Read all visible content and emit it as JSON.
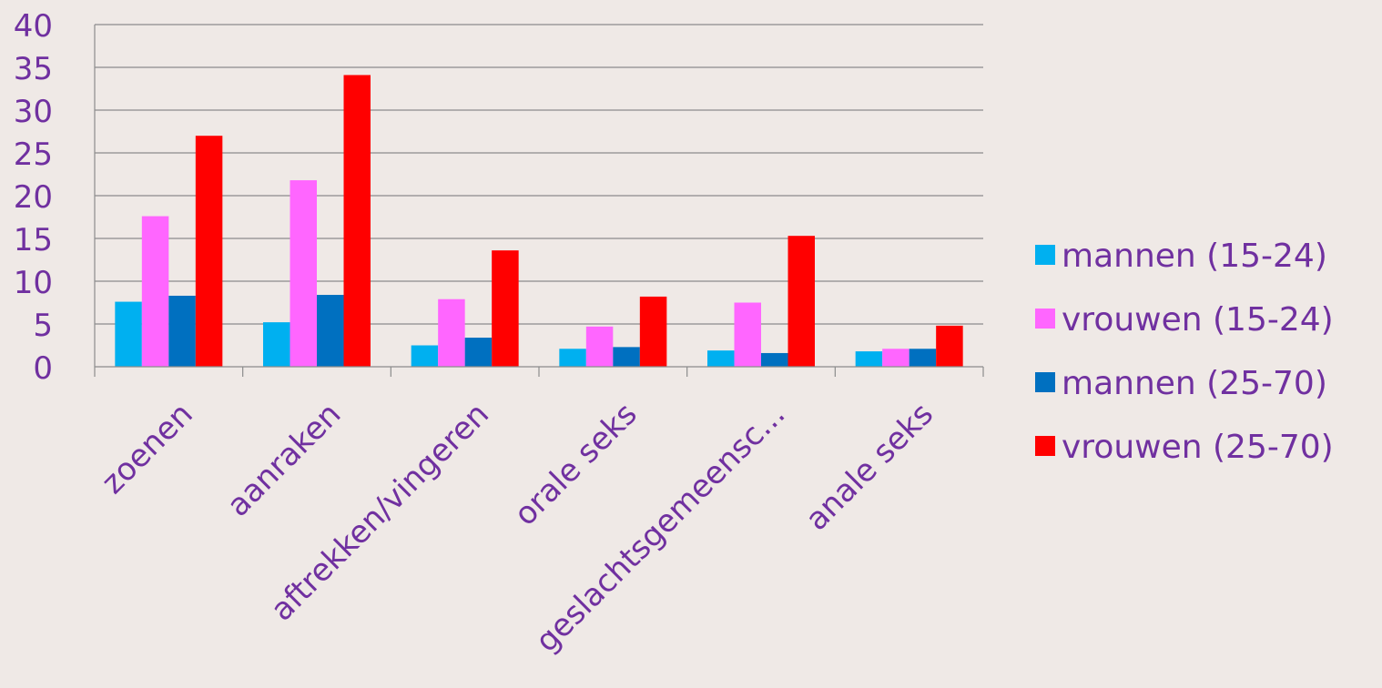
{
  "chart_data": {
    "type": "bar",
    "categories": [
      "zoenen",
      "aanraken",
      "aftrekken/vingeren",
      "orale seks",
      "geslachtsgemeensc...",
      "anale seks"
    ],
    "series": [
      {
        "name": "mannen (15-24)",
        "color": "#00b0f0",
        "values": [
          7.6,
          5.2,
          2.5,
          2.1,
          1.9,
          1.8
        ]
      },
      {
        "name": "vrouwen (15-24)",
        "color": "#ff66ff",
        "values": [
          17.6,
          21.8,
          7.9,
          4.7,
          7.5,
          2.1
        ]
      },
      {
        "name": "mannen (25-70)",
        "color": "#0070c0",
        "values": [
          8.3,
          8.4,
          3.4,
          2.3,
          1.6,
          2.1
        ]
      },
      {
        "name": "vrouwen (25-70)",
        "color": "#ff0000",
        "values": [
          27.0,
          34.1,
          13.6,
          8.2,
          15.3,
          4.8
        ]
      }
    ],
    "ylim": [
      0,
      40
    ],
    "yticks": [
      "0",
      "5",
      "10",
      "15",
      "20",
      "25",
      "30",
      "35",
      "40"
    ],
    "grid": true,
    "legend_position": "right",
    "text_color": "#7030a0"
  }
}
